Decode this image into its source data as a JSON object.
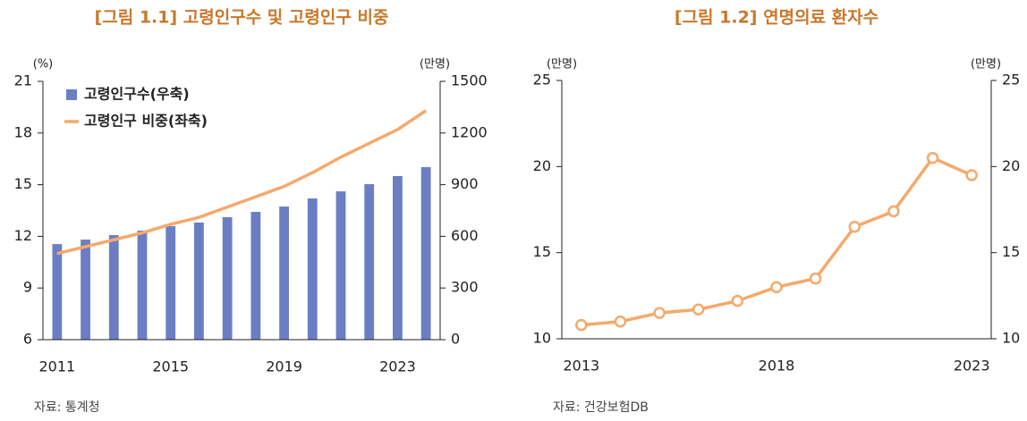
{
  "chart_data": [
    {
      "type": "bar",
      "title": "[그림 1.1] 고령인구수 및 고령인구 비중",
      "source": "자료: 통계청",
      "ylabel": "(%)",
      "y2label": "(만명)",
      "categories": [
        "2011",
        null,
        null,
        null,
        "2015",
        null,
        null,
        null,
        "2019",
        null,
        null,
        null,
        "2023",
        null
      ],
      "series": [
        {
          "name": "고령인구수(우축)",
          "type": "bar",
          "axis": "y2",
          "color": "#6b7ec4",
          "values": [
            555,
            581,
            607,
            633,
            659,
            680,
            711,
            742,
            773,
            820,
            861,
            903,
            950,
            1002
          ]
        },
        {
          "name": "고령인구 비중(좌축)",
          "type": "line",
          "axis": "y",
          "color": "#f5a96b",
          "values": [
            11.0,
            11.4,
            11.8,
            12.2,
            12.7,
            13.1,
            13.7,
            14.3,
            14.9,
            15.7,
            16.6,
            17.4,
            18.2,
            19.3
          ]
        }
      ],
      "ylim": [
        6,
        21
      ],
      "yticks": [
        6,
        9,
        12,
        15,
        18,
        21
      ],
      "y2lim": [
        0,
        1500
      ],
      "y2ticks": [
        0,
        300,
        600,
        900,
        1200,
        1500
      ],
      "legend": "upper left"
    },
    {
      "type": "line",
      "title": "[그림 1.2] 연명의료 환자수",
      "source": "자료: 건강보험DB",
      "ylabel": "(만명)",
      "y2label": "(만명)",
      "categories": [
        "2013",
        null,
        null,
        null,
        null,
        "2018",
        null,
        null,
        null,
        null,
        "2023"
      ],
      "series": [
        {
          "type": "line",
          "axis": "y",
          "color": "#f5a96b",
          "marker": "circle",
          "values": [
            10.8,
            11.0,
            11.5,
            11.7,
            12.2,
            13.0,
            13.5,
            16.5,
            17.4,
            20.5,
            19.5
          ]
        }
      ],
      "ylim": [
        10,
        25
      ],
      "yticks": [
        10,
        15,
        20,
        25
      ],
      "y2lim": [
        10,
        25
      ],
      "y2ticks": [
        10,
        15,
        20,
        25
      ]
    }
  ]
}
